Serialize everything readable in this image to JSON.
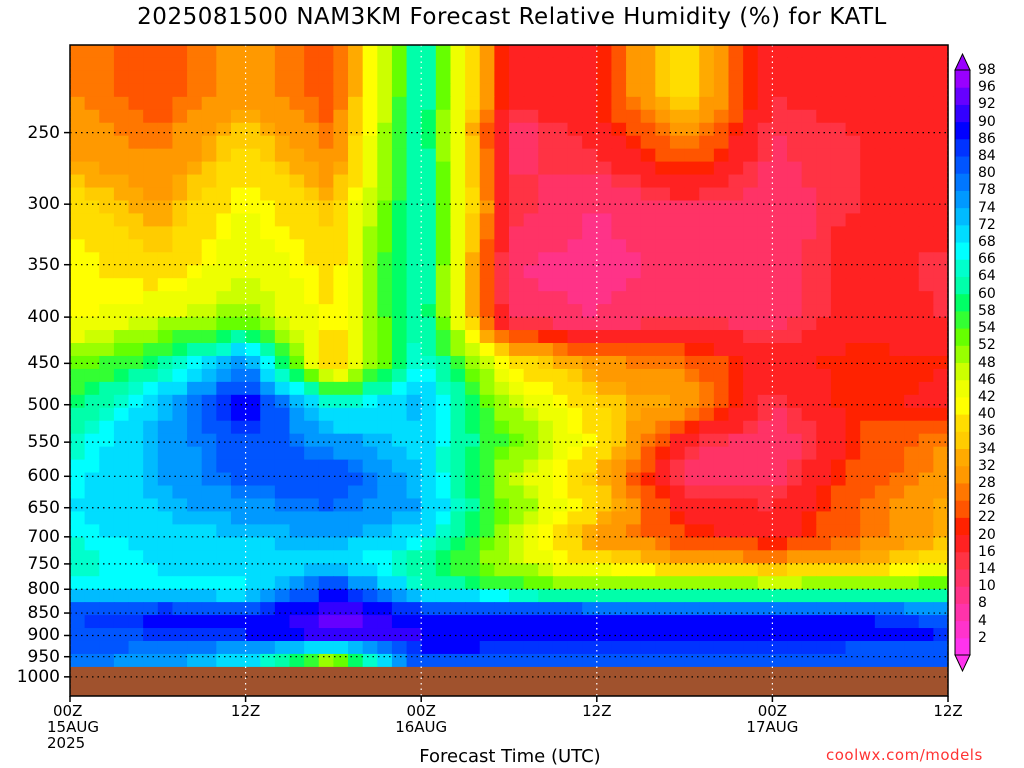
{
  "chart_data": {
    "type": "heatmap",
    "title": "2025081500 NAM3KM Forecast Relative Humidity (%) for KATL",
    "xlabel": "Forecast Time (UTC)",
    "ylabel": "",
    "x_ticks": [
      {
        "hour": 0,
        "lines": [
          "00Z",
          "15AUG",
          "2025"
        ]
      },
      {
        "hour": 12,
        "lines": [
          "12Z"
        ]
      },
      {
        "hour": 24,
        "lines": [
          "00Z",
          "16AUG"
        ]
      },
      {
        "hour": 36,
        "lines": [
          "12Z"
        ]
      },
      {
        "hour": 48,
        "lines": [
          "00Z",
          "17AUG"
        ]
      },
      {
        "hour": 60,
        "lines": [
          "12Z"
        ]
      }
    ],
    "xlim_hours": [
      0,
      60
    ],
    "y_scale": "log-pressure",
    "ylim_hPa": [
      1050,
      200
    ],
    "y_ticks": [
      250,
      300,
      350,
      400,
      450,
      500,
      550,
      600,
      650,
      700,
      750,
      800,
      850,
      900,
      950,
      1000
    ],
    "grid": true,
    "ground_level_hPa": 975,
    "ground_color": "#a0522d",
    "colorbar": {
      "levels": [
        2,
        4,
        8,
        10,
        14,
        16,
        20,
        22,
        26,
        28,
        32,
        34,
        36,
        40,
        42,
        46,
        48,
        52,
        54,
        58,
        60,
        64,
        66,
        68,
        72,
        74,
        78,
        80,
        84,
        86,
        90,
        92,
        96,
        98
      ],
      "colors": [
        "#ff33ee",
        "#ff33cc",
        "#ff33aa",
        "#ff3388",
        "#ff3366",
        "#ff3344",
        "#ff2222",
        "#ff2200",
        "#ff5500",
        "#ff7700",
        "#ff9900",
        "#ffaa00",
        "#ffcc00",
        "#ffdd00",
        "#ffff00",
        "#eeff00",
        "#ccff00",
        "#99ff00",
        "#66ff00",
        "#33ff33",
        "#00ff66",
        "#00ffaa",
        "#00ffcc",
        "#00ffff",
        "#00ddff",
        "#00bbff",
        "#0099ff",
        "#0077ff",
        "#0055ff",
        "#0033ff",
        "#0000ff",
        "#3300ff",
        "#6600ff",
        "#9900ff"
      ]
    },
    "values_hours": [
      0,
      6,
      12,
      18,
      24,
      30,
      36,
      42,
      48,
      54,
      60
    ],
    "values_levels_hPa": [
      225,
      250,
      300,
      350,
      400,
      450,
      500,
      550,
      600,
      650,
      700,
      750,
      800,
      850,
      900,
      950
    ],
    "values": [
      [
        28,
        24,
        30,
        24,
        64,
        18,
        20,
        40,
        16,
        20,
        16
      ],
      [
        30,
        26,
        36,
        26,
        64,
        12,
        18,
        30,
        14,
        16,
        18
      ],
      [
        38,
        32,
        42,
        34,
        66,
        16,
        10,
        14,
        12,
        16,
        20
      ],
      [
        42,
        36,
        46,
        38,
        66,
        10,
        8,
        12,
        10,
        20,
        14
      ],
      [
        40,
        46,
        50,
        40,
        64,
        12,
        10,
        14,
        12,
        18,
        16
      ],
      [
        52,
        60,
        78,
        34,
        68,
        40,
        30,
        26,
        18,
        22,
        20
      ],
      [
        58,
        72,
        90,
        66,
        74,
        48,
        36,
        32,
        14,
        22,
        18
      ],
      [
        64,
        74,
        84,
        76,
        70,
        54,
        40,
        16,
        10,
        22,
        28
      ],
      [
        66,
        74,
        82,
        84,
        72,
        48,
        34,
        12,
        12,
        24,
        30
      ],
      [
        68,
        72,
        76,
        80,
        74,
        52,
        38,
        18,
        16,
        26,
        34
      ],
      [
        66,
        70,
        72,
        74,
        70,
        48,
        30,
        22,
        18,
        26,
        34
      ],
      [
        64,
        68,
        70,
        70,
        60,
        48,
        40,
        34,
        30,
        34,
        40
      ],
      [
        68,
        68,
        66,
        86,
        66,
        58,
        52,
        56,
        54,
        54,
        58
      ],
      [
        84,
        88,
        86,
        94,
        88,
        88,
        86,
        84,
        86,
        86,
        80
      ],
      [
        82,
        84,
        86,
        92,
        90,
        88,
        88,
        90,
        90,
        88,
        86
      ],
      [
        80,
        76,
        70,
        50,
        84,
        84,
        82,
        80,
        82,
        80,
        82
      ]
    ]
  },
  "credit": "coolwx.com/models"
}
